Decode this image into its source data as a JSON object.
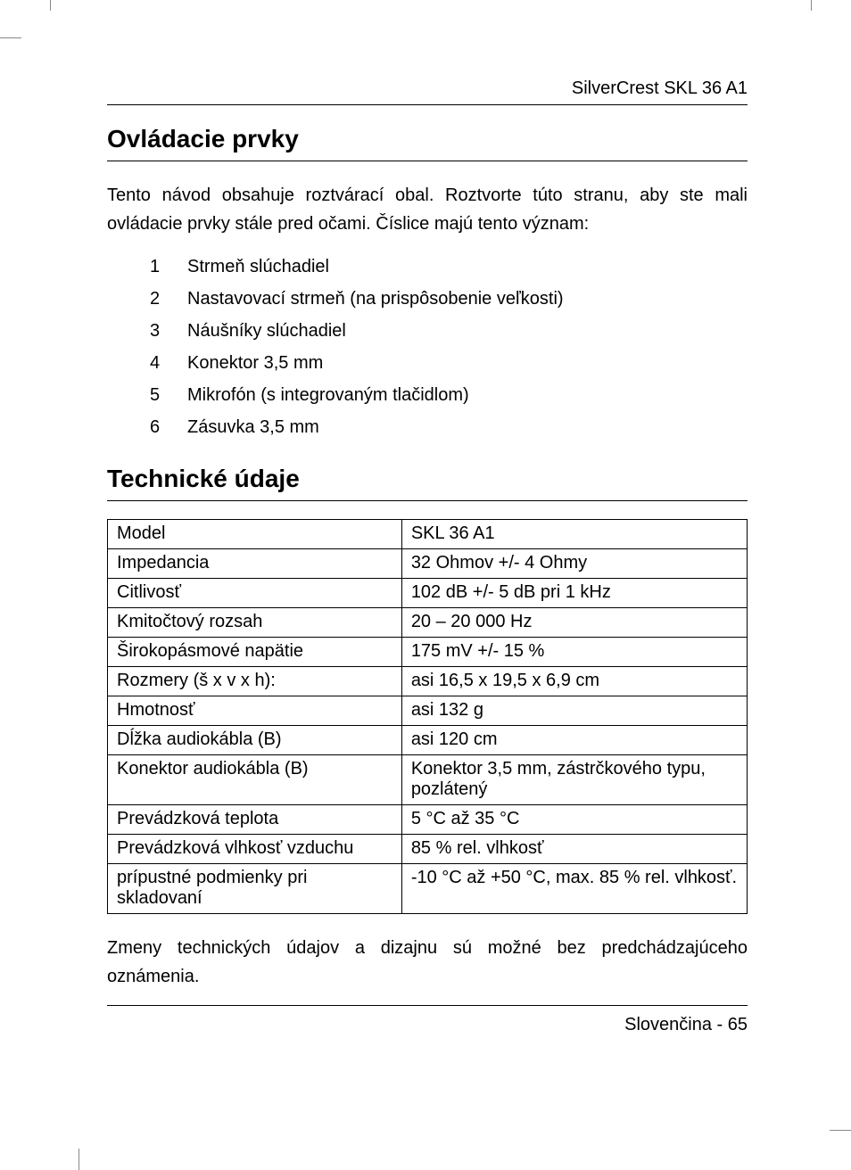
{
  "header": {
    "product": "SilverCrest SKL 36 A1"
  },
  "section1": {
    "title": "Ovládacie prvky",
    "intro": "Tento návod obsahuje roztvárací obal. Roztvorte túto stranu, aby ste mali ovládacie prvky stále pred očami. Číslice majú tento význam:",
    "items": [
      {
        "num": "1",
        "label": "Strmeň slúchadiel"
      },
      {
        "num": "2",
        "label": "Nastavovací strmeň (na prispôsobenie veľkosti)"
      },
      {
        "num": "3",
        "label": "Náušníky slúchadiel"
      },
      {
        "num": "4",
        "label": "Konektor 3,5 mm"
      },
      {
        "num": "5",
        "label": "Mikrofón (s integrovaným tlačidlom)"
      },
      {
        "num": "6",
        "label": "Zásuvka 3,5 mm"
      }
    ]
  },
  "section2": {
    "title": "Technické údaje",
    "table": {
      "rows": [
        [
          "Model",
          "SKL 36 A1"
        ],
        [
          "Impedancia",
          "32 Ohmov +/- 4 Ohmy"
        ],
        [
          "Citlivosť",
          "102 dB +/- 5 dB pri 1 kHz"
        ],
        [
          "Kmitočtový rozsah",
          "20 – 20 000 Hz"
        ],
        [
          "Širokopásmové napätie",
          "175 mV +/- 15 %"
        ],
        [
          "Rozmery (š x v x h):",
          "asi 16,5 x 19,5 x 6,9 cm"
        ],
        [
          "Hmotnosť",
          "asi 132 g"
        ],
        [
          "Dĺžka audiokábla (B)",
          "asi 120 cm"
        ],
        [
          "Konektor audiokábla (B)",
          "Konektor 3,5 mm, zástrčkového typu, pozlátený"
        ],
        [
          "Prevádzková teplota",
          "5 °C až 35 °C"
        ],
        [
          "Prevádzková vlhkosť vzduchu",
          "85 % rel. vlhkosť"
        ],
        [
          "prípustné podmienky pri skladovaní",
          "-10 °C až +50 °C, max. 85 % rel. vlhkosť."
        ]
      ]
    },
    "note": "Zmeny technických údajov a dizajnu sú možné bez predchádzajúceho oznámenia."
  },
  "footer": {
    "text": "Slovenčina - 65"
  }
}
